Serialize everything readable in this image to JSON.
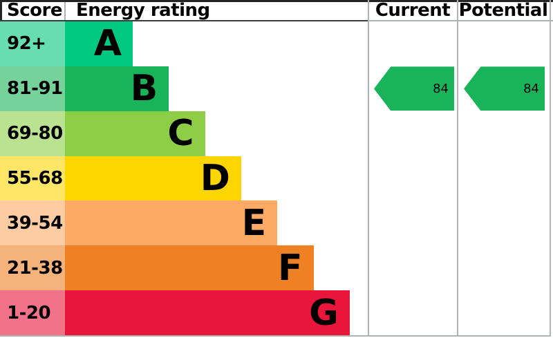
{
  "header": {
    "score": "Score",
    "energy_rating": "Energy rating",
    "current": "Current",
    "potential": "Potential"
  },
  "bands": [
    {
      "letter": "A",
      "range": "92+",
      "color": "#00c781"
    },
    {
      "letter": "B",
      "range": "81-91",
      "color": "#19b459"
    },
    {
      "letter": "C",
      "range": "69-80",
      "color": "#8dce46"
    },
    {
      "letter": "D",
      "range": "55-68",
      "color": "#ffd500"
    },
    {
      "letter": "E",
      "range": "39-54",
      "color": "#fcaa65"
    },
    {
      "letter": "F",
      "range": "21-38",
      "color": "#ef8023"
    },
    {
      "letter": "G",
      "range": "1-20",
      "color": "#e9153b"
    }
  ],
  "current": {
    "value": "84",
    "band": "B",
    "color": "#19b459"
  },
  "potential": {
    "value": "84",
    "band": "B",
    "color": "#19b459"
  },
  "style": {
    "score_tint_opacity": 0.6,
    "border_light": "#b1b4b6",
    "border_dark": "#242424",
    "text_color": "#000000"
  },
  "chart_data": {
    "type": "bar",
    "title": "EPC energy efficiency rating chart",
    "columns": [
      "Score",
      "Energy rating",
      "Current",
      "Potential"
    ],
    "categories": [
      "A",
      "B",
      "C",
      "D",
      "E",
      "F",
      "G"
    ],
    "score_ranges": [
      "92+",
      "81-91",
      "69-80",
      "55-68",
      "39-54",
      "21-38",
      "1-20"
    ],
    "band_colors": [
      "#00c781",
      "#19b459",
      "#8dce46",
      "#ffd500",
      "#fcaa65",
      "#ef8023",
      "#e9153b"
    ],
    "bar_relative_lengths": [
      1,
      2,
      3,
      4,
      5,
      6,
      7
    ],
    "current": {
      "value": 84,
      "band": "B"
    },
    "potential": {
      "value": 84,
      "band": "B"
    },
    "grid": false,
    "legend_position": "none"
  }
}
